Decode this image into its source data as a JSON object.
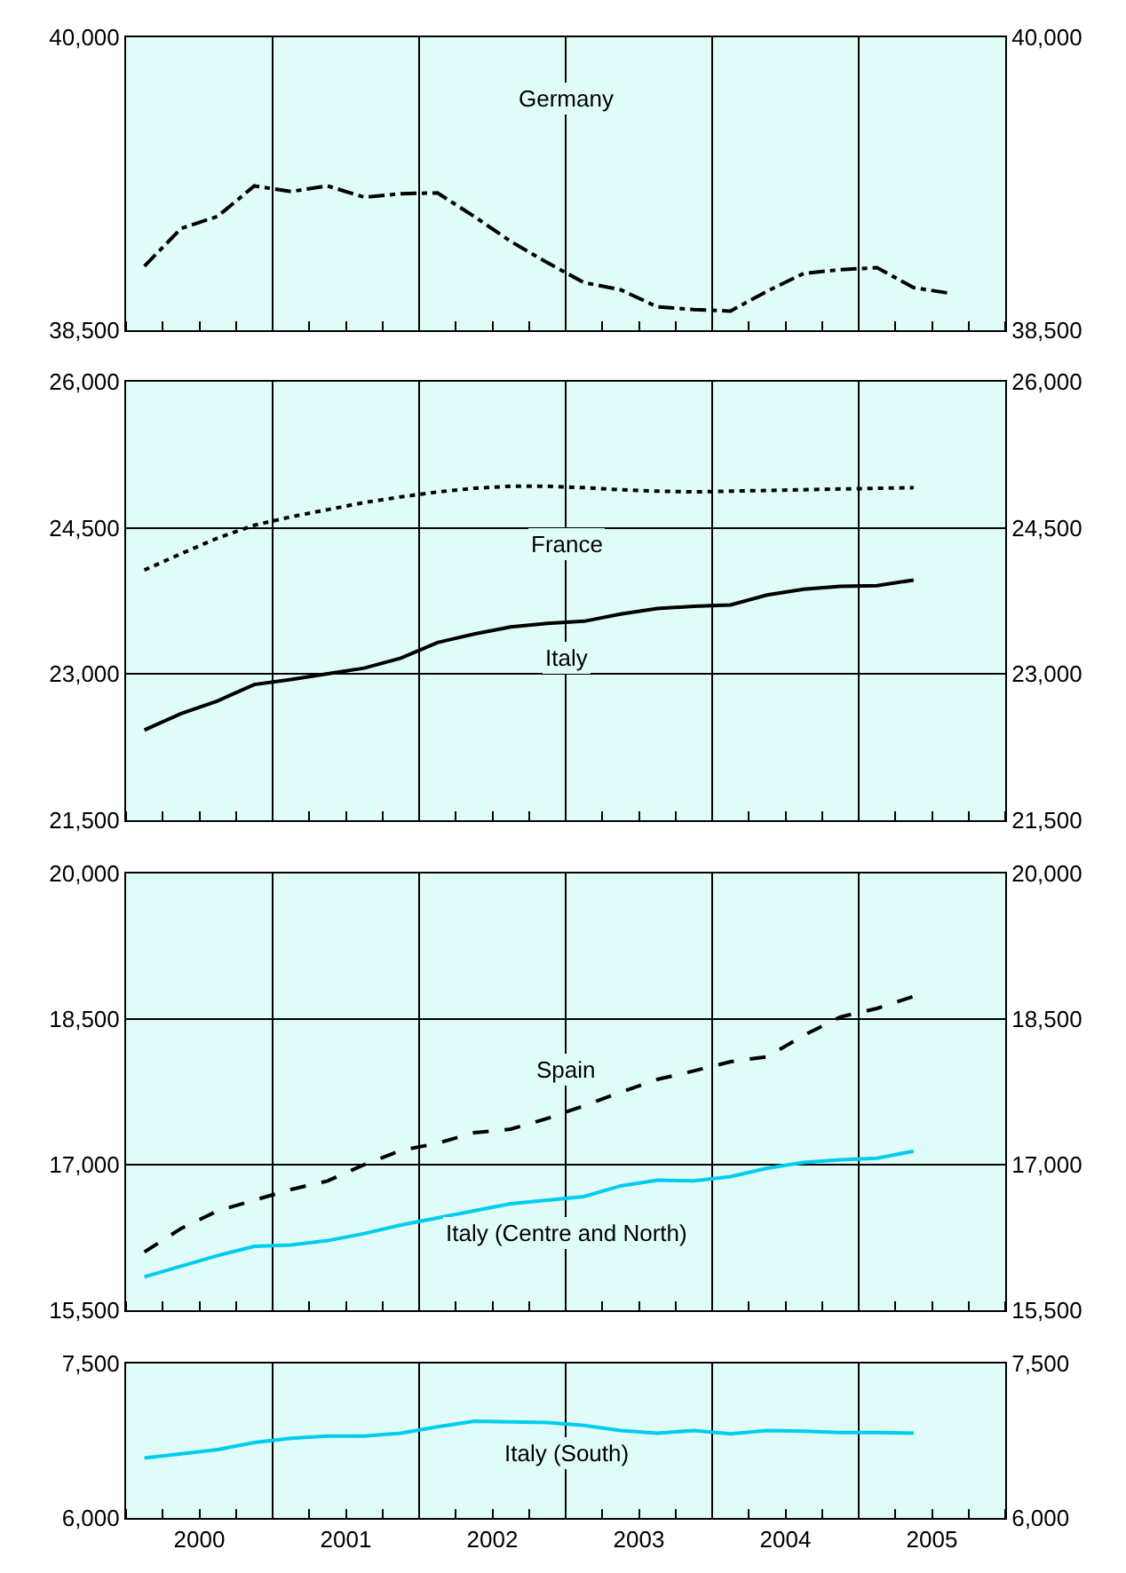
{
  "chart_data": [
    {
      "type": "line",
      "tick_labels": "y",
      "grid": true,
      "legend": false,
      "marker": "none",
      "x": [
        2000.125,
        2000.375,
        2000.625,
        2000.875,
        2001.125,
        2001.375,
        2001.625,
        2001.875,
        2002.125,
        2002.375,
        2002.625,
        2002.875,
        2003.125,
        2003.375,
        2003.625,
        2003.875,
        2004.125,
        2004.375,
        2004.625,
        2004.875,
        2005.125,
        2005.375,
        2005.625
      ],
      "xlim": [
        2000,
        2006
      ],
      "xticks": [
        {
          "value": 2001,
          "label": null
        },
        {
          "value": 2002,
          "label": null
        },
        {
          "value": 2003,
          "label": null
        },
        {
          "value": 2004,
          "label": null
        },
        {
          "value": 2005,
          "label": null
        }
      ],
      "ylim": [
        38500,
        40000
      ],
      "yticks": [
        {
          "value": 38500,
          "label": "38,500"
        },
        {
          "value": 40000,
          "label": "40,000"
        }
      ],
      "y2lim": [
        38500,
        40000
      ],
      "y2ticks": [
        {
          "value": 38500,
          "label": "38,500"
        },
        {
          "value": 40000,
          "label": "40,000"
        }
      ],
      "series": [
        {
          "name": "Germany",
          "color": "#000000",
          "line_style": "dashdot",
          "values": [
            38828,
            39021,
            39083,
            39239,
            39210,
            39239,
            39181,
            39199,
            39203,
            39083,
            38955,
            38846,
            38744,
            38707,
            38620,
            38606,
            38598,
            38700,
            38791,
            38810,
            38820,
            38718,
            38689
          ]
        }
      ]
    },
    {
      "type": "line",
      "tick_labels": "y",
      "grid": true,
      "legend": false,
      "marker": "none",
      "x": [
        2000.125,
        2000.375,
        2000.625,
        2000.875,
        2001.125,
        2001.375,
        2001.625,
        2001.875,
        2002.125,
        2002.375,
        2002.625,
        2002.875,
        2003.125,
        2003.375,
        2003.625,
        2003.875,
        2004.125,
        2004.375,
        2004.625,
        2004.875,
        2005.125,
        2005.375
      ],
      "xlim": [
        2000,
        2006
      ],
      "xticks": [
        {
          "value": 2001,
          "label": null
        },
        {
          "value": 2002,
          "label": null
        },
        {
          "value": 2003,
          "label": null
        },
        {
          "value": 2004,
          "label": null
        },
        {
          "value": 2005,
          "label": null
        }
      ],
      "ylim": [
        21500,
        26000
      ],
      "yticks": [
        {
          "value": 21500,
          "label": "21,500"
        },
        {
          "value": 23000,
          "label": "23,000"
        },
        {
          "value": 24500,
          "label": "24,500"
        },
        {
          "value": 26000,
          "label": "26,000"
        }
      ],
      "y2lim": [
        21500,
        26000
      ],
      "y2ticks": [
        {
          "value": 21500,
          "label": "21,500"
        },
        {
          "value": 23000,
          "label": "23,000"
        },
        {
          "value": 24500,
          "label": "24,500"
        },
        {
          "value": 26000,
          "label": "26,000"
        }
      ],
      "series": [
        {
          "name": "France",
          "color": "#000000",
          "line_style": "dotted",
          "values": [
            24067,
            24235,
            24396,
            24527,
            24614,
            24687,
            24760,
            24818,
            24869,
            24906,
            24928,
            24928,
            24913,
            24891,
            24877,
            24869,
            24877,
            24884,
            24891,
            24899,
            24906,
            24913
          ]
        },
        {
          "name": "Italy",
          "color": "#000000",
          "line_style": "solid",
          "values": [
            22426,
            22594,
            22725,
            22893,
            22944,
            23003,
            23061,
            23163,
            23323,
            23411,
            23484,
            23520,
            23542,
            23615,
            23673,
            23695,
            23710,
            23812,
            23870,
            23900,
            23907,
            23965
          ]
        }
      ]
    },
    {
      "type": "line",
      "tick_labels": "y",
      "grid": true,
      "legend": false,
      "marker": "none",
      "x": [
        2000.125,
        2000.375,
        2000.625,
        2000.875,
        2001.125,
        2001.375,
        2001.625,
        2001.875,
        2002.125,
        2002.375,
        2002.625,
        2002.875,
        2003.125,
        2003.375,
        2003.625,
        2003.875,
        2004.125,
        2004.375,
        2004.625,
        2004.875,
        2005.125,
        2005.375
      ],
      "xlim": [
        2000,
        2006
      ],
      "xticks": [
        {
          "value": 2001,
          "label": null
        },
        {
          "value": 2002,
          "label": null
        },
        {
          "value": 2003,
          "label": null
        },
        {
          "value": 2004,
          "label": null
        },
        {
          "value": 2005,
          "label": null
        }
      ],
      "ylim": [
        15500,
        20000
      ],
      "yticks": [
        {
          "value": 15500,
          "label": "15,500"
        },
        {
          "value": 17000,
          "label": "17,000"
        },
        {
          "value": 18500,
          "label": "18,500"
        },
        {
          "value": 20000,
          "label": "20,000"
        }
      ],
      "y2lim": [
        15500,
        20000
      ],
      "y2ticks": [
        {
          "value": 15500,
          "label": "15,500"
        },
        {
          "value": 17000,
          "label": "17,000"
        },
        {
          "value": 18500,
          "label": "18,500"
        },
        {
          "value": 20000,
          "label": "20,000"
        }
      ],
      "series": [
        {
          "name": "Spain",
          "color": "#000000",
          "line_style": "dashed",
          "values": [
            16100,
            16342,
            16524,
            16634,
            16744,
            16832,
            17000,
            17146,
            17220,
            17329,
            17366,
            17476,
            17607,
            17746,
            17878,
            17966,
            18061,
            18112,
            18332,
            18522,
            18610,
            18734
          ]
        },
        {
          "name": "Italy (Centre and North)",
          "color": "#00ccee",
          "line_style": "solid",
          "values": [
            15844,
            15954,
            16064,
            16159,
            16173,
            16217,
            16290,
            16378,
            16451,
            16524,
            16598,
            16634,
            16671,
            16781,
            16839,
            16832,
            16876,
            16963,
            17022,
            17051,
            17066,
            17139
          ]
        }
      ]
    },
    {
      "type": "line",
      "grid": true,
      "legend": false,
      "marker": "none",
      "x": [
        2000.125,
        2000.375,
        2000.625,
        2000.875,
        2001.125,
        2001.375,
        2001.625,
        2001.875,
        2002.125,
        2002.375,
        2002.625,
        2002.875,
        2003.125,
        2003.375,
        2003.625,
        2003.875,
        2004.125,
        2004.375,
        2004.625,
        2004.875,
        2005.125,
        2005.375
      ],
      "xlim": [
        2000,
        2006
      ],
      "xticks": [
        {
          "value": 2001,
          "label": null
        },
        {
          "value": 2002,
          "label": null
        },
        {
          "value": 2003,
          "label": null
        },
        {
          "value": 2004,
          "label": null
        },
        {
          "value": 2005,
          "label": null
        },
        {
          "value": 2000.5,
          "label": "2000"
        },
        {
          "value": 2001.5,
          "label": "2001"
        },
        {
          "value": 2002.5,
          "label": "2002"
        },
        {
          "value": 2003.5,
          "label": "2003"
        },
        {
          "value": 2004.5,
          "label": "2004"
        },
        {
          "value": 2005.5,
          "label": "2005"
        }
      ],
      "ylim": [
        6000,
        7500
      ],
      "yticks": [
        {
          "value": 6000,
          "label": "6,000"
        },
        {
          "value": 7500,
          "label": "7,500"
        }
      ],
      "y2lim": [
        6000,
        7500
      ],
      "y2ticks": [
        {
          "value": 6000,
          "label": "6,000"
        },
        {
          "value": 7500,
          "label": "7,500"
        }
      ],
      "series": [
        {
          "name": "Italy (South)",
          "color": "#00ccee",
          "line_style": "solid",
          "values": [
            6581,
            6622,
            6664,
            6733,
            6774,
            6795,
            6795,
            6823,
            6885,
            6940,
            6933,
            6926,
            6899,
            6850,
            6823,
            6850,
            6816,
            6850,
            6843,
            6830,
            6830,
            6823
          ]
        }
      ]
    }
  ]
}
